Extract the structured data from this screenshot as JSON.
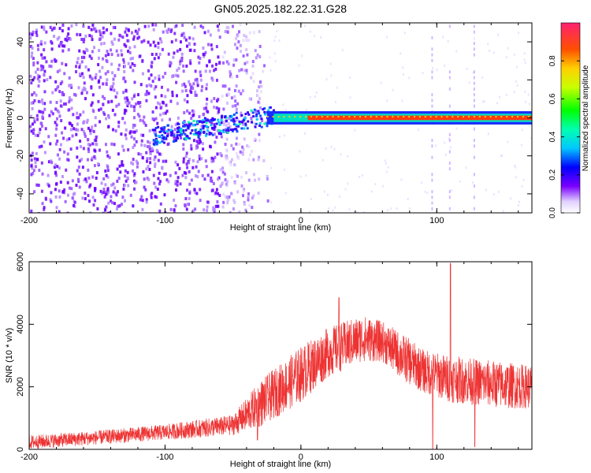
{
  "title": "GN05.2025.182.22.31.G28",
  "chart_data": [
    {
      "type": "heatmap",
      "xlabel": "Height of straight line (km)",
      "ylabel": "Frequency (Hz)",
      "xlim": [
        -200,
        170
      ],
      "ylim": [
        -50,
        50
      ],
      "xticks": [
        -200,
        -100,
        0,
        100
      ],
      "yticks": [
        -40,
        -20,
        0,
        20,
        40
      ],
      "colorbar": {
        "label": "Normalized spectral amplitude",
        "range": [
          0.0,
          1.0
        ],
        "ticks": [
          0.0,
          0.2,
          0.4,
          0.6,
          0.8
        ]
      },
      "description_values": {
        "noise_region_x": [
          -200,
          -28
        ],
        "signal_frequency_hz": 0,
        "bright_band_x": [
          -110,
          170
        ]
      }
    },
    {
      "type": "line",
      "xlabel": "Height of straight line (km)",
      "ylabel": "SNR (10 * v/v)",
      "xlim": [
        -200,
        170
      ],
      "ylim": [
        0,
        6000
      ],
      "xticks": [
        -200,
        -100,
        0,
        100
      ],
      "yticks": [
        0,
        2000,
        4000,
        6000
      ],
      "color": "#ee3333",
      "envelope": [
        {
          "x": -200,
          "low": 0,
          "mid": 250,
          "high": 450
        },
        {
          "x": -150,
          "low": 150,
          "mid": 400,
          "high": 600
        },
        {
          "x": -100,
          "low": 300,
          "mid": 550,
          "high": 800
        },
        {
          "x": -50,
          "low": 450,
          "mid": 800,
          "high": 1100
        },
        {
          "x": -30,
          "low": 700,
          "mid": 1200,
          "high": 2200
        },
        {
          "x": 0,
          "low": 1500,
          "mid": 2300,
          "high": 3300
        },
        {
          "x": 20,
          "low": 2300,
          "mid": 3100,
          "high": 3900
        },
        {
          "x": 45,
          "low": 2800,
          "mid": 3500,
          "high": 4300
        },
        {
          "x": 60,
          "low": 2800,
          "mid": 3400,
          "high": 4100
        },
        {
          "x": 75,
          "low": 2200,
          "mid": 3000,
          "high": 3700
        },
        {
          "x": 90,
          "low": 1800,
          "mid": 2500,
          "high": 3200
        },
        {
          "x": 110,
          "low": 1500,
          "mid": 2300,
          "high": 3000
        },
        {
          "x": 130,
          "low": 1400,
          "mid": 2200,
          "high": 2900
        },
        {
          "x": 150,
          "low": 1300,
          "mid": 2100,
          "high": 2800
        },
        {
          "x": 170,
          "low": 1300,
          "mid": 2000,
          "high": 2700
        }
      ],
      "spikes": [
        {
          "x": 28,
          "y": 4850
        },
        {
          "x": 110,
          "y": 5950
        },
        {
          "x": 97,
          "y": 0
        },
        {
          "x": 128,
          "y": 80
        },
        {
          "x": -32,
          "y": 300
        }
      ]
    }
  ]
}
